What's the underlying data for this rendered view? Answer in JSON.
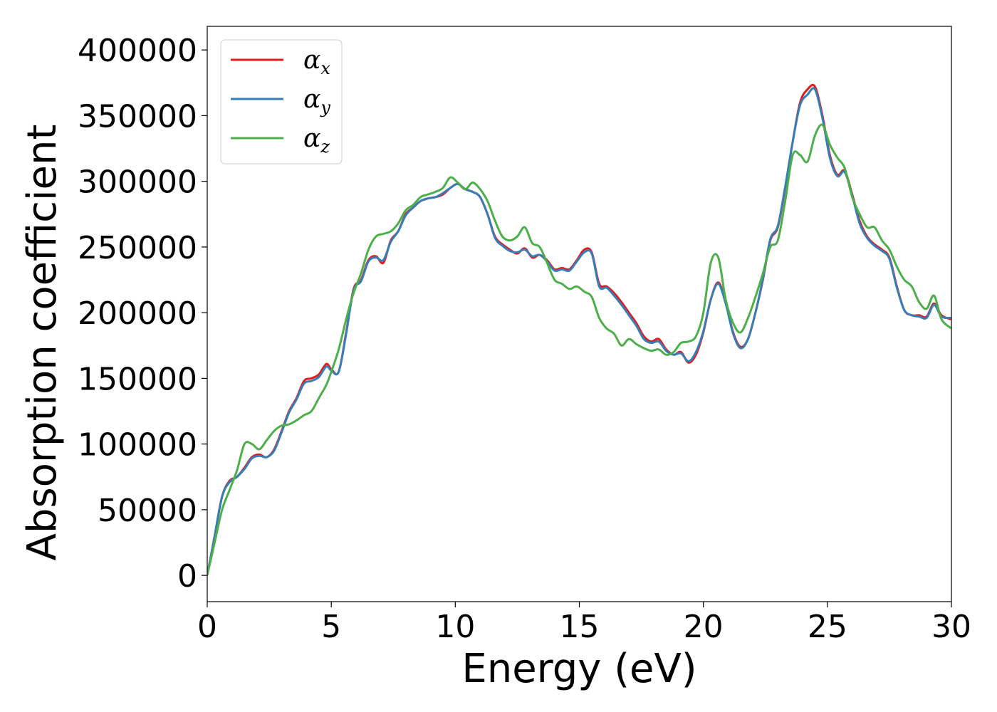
{
  "chart_data": {
    "type": "line",
    "xlabel": "Energy (eV)",
    "ylabel": "Absorption coefficient",
    "xlim": [
      0,
      30
    ],
    "ylim": [
      -20000,
      418000
    ],
    "xticks": [
      "0",
      "5",
      "10",
      "15",
      "20",
      "25",
      "30"
    ],
    "yticks": [
      "0",
      "50000",
      "100000",
      "150000",
      "200000",
      "250000",
      "300000",
      "350000",
      "400000"
    ],
    "grid": false,
    "legend_position": "top-left",
    "series": [
      {
        "name": "αx",
        "symbol": "α",
        "subscript": "x",
        "color": "#e41a1c",
        "x": [
          0,
          0.3,
          0.6,
          0.9,
          1.2,
          1.5,
          1.8,
          2.1,
          2.4,
          2.7,
          3.0,
          3.3,
          3.6,
          3.9,
          4.2,
          4.5,
          4.8,
          5.0,
          5.3,
          5.6,
          5.9,
          6.2,
          6.5,
          6.8,
          7.1,
          7.4,
          7.7,
          8.0,
          8.3,
          8.6,
          8.9,
          9.2,
          9.5,
          9.8,
          10.1,
          10.4,
          10.7,
          11.0,
          11.3,
          11.6,
          11.9,
          12.2,
          12.5,
          12.8,
          13.1,
          13.4,
          13.7,
          14.0,
          14.3,
          14.6,
          14.9,
          15.2,
          15.5,
          15.8,
          16.1,
          16.4,
          16.7,
          17.0,
          17.3,
          17.6,
          17.9,
          18.2,
          18.5,
          18.8,
          19.1,
          19.4,
          19.7,
          20.0,
          20.3,
          20.6,
          20.9,
          21.2,
          21.5,
          21.8,
          22.1,
          22.4,
          22.7,
          23.0,
          23.3,
          23.6,
          23.9,
          24.2,
          24.5,
          24.8,
          25.1,
          25.4,
          25.7,
          26.0,
          26.3,
          26.6,
          26.9,
          27.2,
          27.5,
          27.8,
          28.1,
          28.4,
          28.7,
          29.0,
          29.3,
          29.6,
          30.0
        ],
        "y": [
          0,
          30000,
          60000,
          72000,
          75000,
          82000,
          90000,
          92000,
          90000,
          96000,
          110000,
          125000,
          135000,
          148000,
          150000,
          153000,
          161000,
          157000,
          155000,
          185000,
          218000,
          225000,
          240000,
          243000,
          238000,
          255000,
          262000,
          275000,
          280000,
          285000,
          287000,
          288000,
          290000,
          295000,
          298000,
          294000,
          292000,
          288000,
          275000,
          258000,
          252000,
          248000,
          245000,
          249000,
          242000,
          244000,
          240000,
          233000,
          234000,
          233000,
          240000,
          248000,
          246000,
          222000,
          220000,
          215000,
          208000,
          200000,
          192000,
          182000,
          178000,
          180000,
          172000,
          168000,
          170000,
          162000,
          168000,
          185000,
          210000,
          223000,
          208000,
          185000,
          174000,
          180000,
          200000,
          225000,
          255000,
          265000,
          295000,
          330000,
          360000,
          370000,
          372000,
          350000,
          320000,
          305000,
          308000,
          290000,
          270000,
          258000,
          252000,
          248000,
          242000,
          220000,
          202000,
          198000,
          198000,
          197000,
          207000,
          198000,
          195000
        ]
      },
      {
        "name": "αy",
        "symbol": "α",
        "subscript": "y",
        "color": "#377eb8",
        "x": [
          0,
          0.3,
          0.6,
          0.9,
          1.2,
          1.5,
          1.8,
          2.1,
          2.4,
          2.7,
          3.0,
          3.3,
          3.6,
          3.9,
          4.2,
          4.5,
          4.8,
          5.0,
          5.3,
          5.6,
          5.9,
          6.2,
          6.5,
          6.8,
          7.1,
          7.4,
          7.7,
          8.0,
          8.3,
          8.6,
          8.9,
          9.2,
          9.5,
          9.8,
          10.1,
          10.4,
          10.7,
          11.0,
          11.3,
          11.6,
          11.9,
          12.2,
          12.5,
          12.8,
          13.1,
          13.4,
          13.7,
          14.0,
          14.3,
          14.6,
          14.9,
          15.2,
          15.5,
          15.8,
          16.1,
          16.4,
          16.7,
          17.0,
          17.3,
          17.6,
          17.9,
          18.2,
          18.5,
          18.8,
          19.1,
          19.4,
          19.7,
          20.0,
          20.3,
          20.6,
          20.9,
          21.2,
          21.5,
          21.8,
          22.1,
          22.4,
          22.7,
          23.0,
          23.3,
          23.6,
          23.9,
          24.2,
          24.5,
          24.8,
          25.1,
          25.4,
          25.7,
          26.0,
          26.3,
          26.6,
          26.9,
          27.2,
          27.5,
          27.8,
          28.1,
          28.4,
          28.7,
          29.0,
          29.3,
          29.6,
          30.0
        ],
        "y": [
          0,
          30000,
          60000,
          71000,
          75000,
          81000,
          89000,
          91000,
          90000,
          95000,
          109000,
          124000,
          134000,
          146000,
          148000,
          151000,
          159000,
          156000,
          155000,
          184000,
          217000,
          224000,
          239000,
          242000,
          240000,
          254000,
          262000,
          274000,
          280000,
          285000,
          287000,
          288000,
          291000,
          295000,
          298000,
          294000,
          292000,
          288000,
          275000,
          257000,
          251000,
          247000,
          246000,
          248000,
          243000,
          244000,
          239000,
          232000,
          233000,
          232000,
          239000,
          246000,
          245000,
          220000,
          219000,
          213000,
          206000,
          198000,
          190000,
          180000,
          177000,
          178000,
          171000,
          168000,
          169000,
          163000,
          170000,
          186000,
          210000,
          222000,
          207000,
          184000,
          173000,
          180000,
          200000,
          226000,
          256000,
          266000,
          296000,
          330000,
          358000,
          366000,
          370000,
          348000,
          318000,
          304000,
          307000,
          289000,
          268000,
          257000,
          251000,
          247000,
          241000,
          219000,
          202000,
          198000,
          197000,
          196000,
          206000,
          197000,
          196000
        ]
      },
      {
        "name": "αz",
        "symbol": "α",
        "subscript": "z",
        "color": "#4daf4a",
        "x": [
          0,
          0.3,
          0.6,
          0.9,
          1.2,
          1.5,
          1.8,
          2.1,
          2.4,
          2.7,
          3.0,
          3.3,
          3.6,
          3.9,
          4.2,
          4.5,
          4.8,
          5.0,
          5.3,
          5.6,
          5.9,
          6.2,
          6.5,
          6.8,
          7.1,
          7.4,
          7.7,
          8.0,
          8.3,
          8.6,
          8.9,
          9.2,
          9.5,
          9.8,
          10.1,
          10.4,
          10.7,
          11.0,
          11.3,
          11.6,
          11.9,
          12.2,
          12.5,
          12.8,
          13.1,
          13.4,
          13.7,
          14.0,
          14.3,
          14.6,
          14.9,
          15.2,
          15.5,
          15.8,
          16.1,
          16.4,
          16.7,
          17.0,
          17.3,
          17.6,
          17.9,
          18.2,
          18.5,
          18.8,
          19.1,
          19.4,
          19.7,
          20.0,
          20.3,
          20.6,
          20.9,
          21.2,
          21.5,
          21.8,
          22.1,
          22.4,
          22.7,
          23.0,
          23.3,
          23.6,
          23.9,
          24.2,
          24.5,
          24.8,
          25.1,
          25.4,
          25.7,
          26.0,
          26.3,
          26.6,
          26.9,
          27.2,
          27.5,
          27.8,
          28.1,
          28.4,
          28.7,
          29.0,
          29.3,
          29.6,
          30.0
        ],
        "y": [
          0,
          25000,
          50000,
          65000,
          80000,
          100000,
          100000,
          96000,
          103000,
          110000,
          114000,
          115000,
          118000,
          122000,
          125000,
          135000,
          145000,
          155000,
          172000,
          195000,
          215000,
          230000,
          248000,
          258000,
          260000,
          262000,
          268000,
          278000,
          282000,
          288000,
          290000,
          292000,
          295000,
          303000,
          299000,
          294000,
          299000,
          294000,
          285000,
          270000,
          258000,
          255000,
          258000,
          265000,
          253000,
          250000,
          238000,
          225000,
          222000,
          218000,
          220000,
          216000,
          212000,
          196000,
          188000,
          184000,
          175000,
          180000,
          176000,
          173000,
          171000,
          172000,
          168000,
          170000,
          177000,
          178000,
          182000,
          200000,
          238000,
          242000,
          210000,
          192000,
          185000,
          196000,
          212000,
          230000,
          250000,
          255000,
          285000,
          320000,
          320000,
          315000,
          335000,
          343000,
          328000,
          318000,
          310000,
          288000,
          275000,
          265000,
          265000,
          255000,
          248000,
          235000,
          225000,
          220000,
          208000,
          203000,
          213000,
          195000,
          188000
        ]
      }
    ]
  }
}
